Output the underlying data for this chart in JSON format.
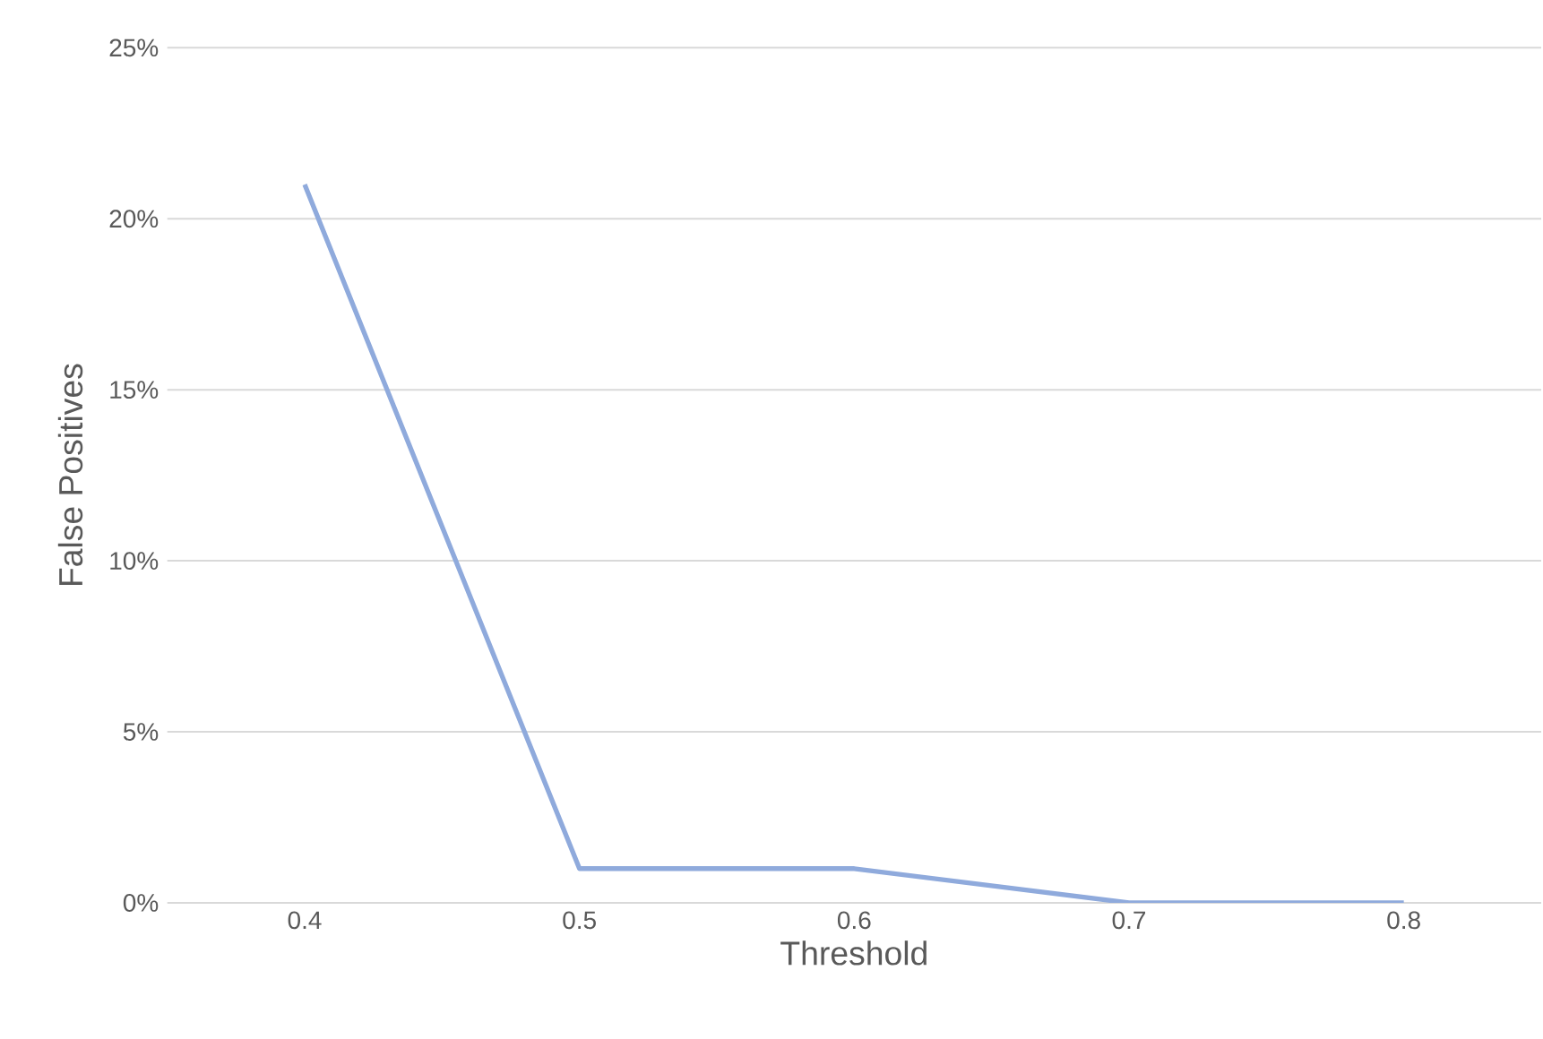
{
  "chart_data": {
    "type": "line",
    "xlabel": "Threshold",
    "ylabel": "False Positives",
    "categories": [
      "0.4",
      "0.5",
      "0.6",
      "0.7",
      "0.8"
    ],
    "values": [
      21,
      1,
      1,
      0,
      0
    ],
    "color": "#8faadc",
    "ylim": [
      0,
      25
    ],
    "yticks": [
      {
        "value": 0,
        "label": "0%"
      },
      {
        "value": 5,
        "label": "5%"
      },
      {
        "value": 10,
        "label": "10%"
      },
      {
        "value": 15,
        "label": "15%"
      },
      {
        "value": 20,
        "label": "20%"
      },
      {
        "value": 25,
        "label": "25%"
      }
    ],
    "grid": "y",
    "marker": "none",
    "line_style": "solid"
  }
}
